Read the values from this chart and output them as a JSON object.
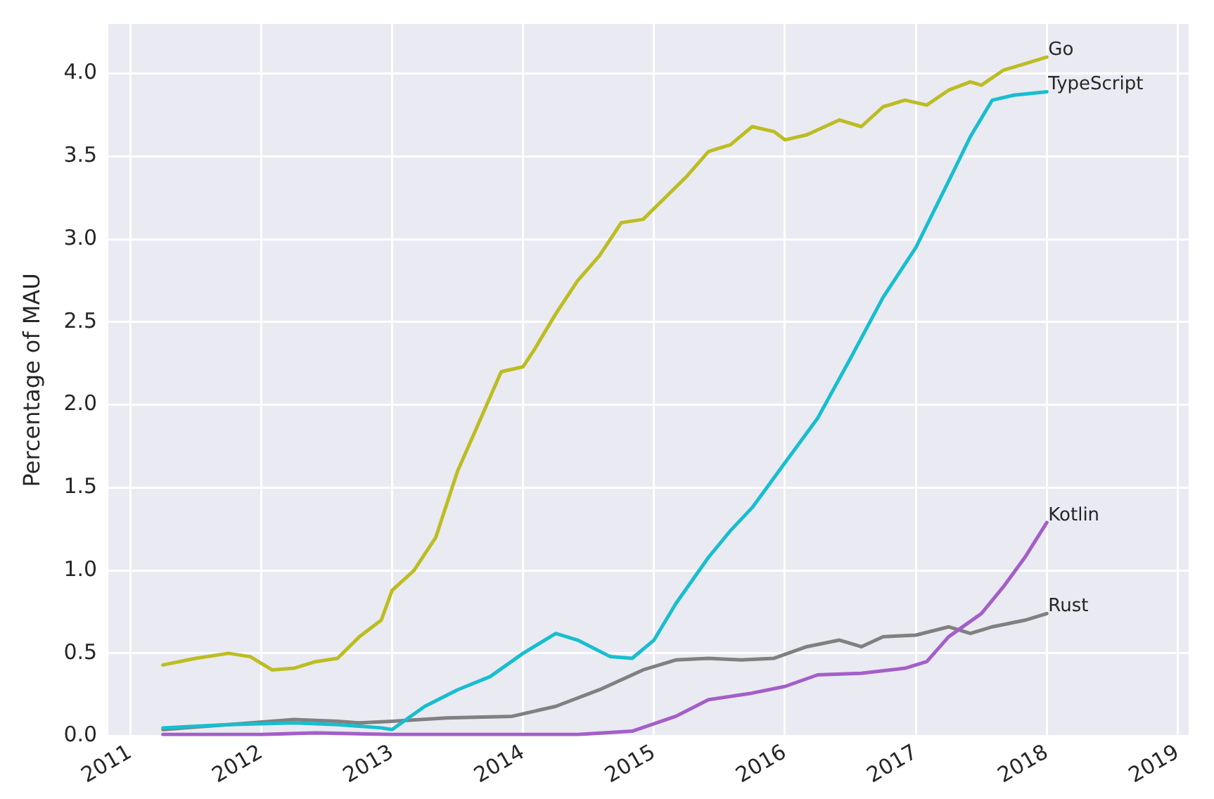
{
  "chart_data": {
    "type": "line",
    "ylabel": "Percentage of MAU",
    "xlim": [
      "2010-11",
      "2019-02"
    ],
    "xticks": [
      "2011",
      "2012",
      "2013",
      "2014",
      "2015",
      "2016",
      "2017",
      "2018",
      "2019"
    ],
    "ylim": [
      0,
      4.3
    ],
    "yticks": [
      {
        "value": 0,
        "label": "0.0"
      },
      0.5,
      {
        "value": 1,
        "label": "1.0"
      },
      1.5,
      {
        "value": 2,
        "label": "2.0"
      },
      2.5,
      {
        "value": 3,
        "label": "3.0"
      },
      3.5,
      {
        "value": 4,
        "label": "4.0"
      }
    ],
    "grid": true,
    "legend": false,
    "marker": "none",
    "line_style": "solid",
    "series": [
      {
        "name": "Go",
        "color": "#bcbd22",
        "x": [
          "2011-04",
          "2011-07",
          "2011-10",
          "2011-12",
          "2012-02",
          "2012-04",
          "2012-06",
          "2012-08",
          "2012-10",
          "2012-12",
          "2013-01",
          "2013-03",
          "2013-05",
          "2013-07",
          "2013-09",
          "2013-11",
          "2014-01",
          "2014-02",
          "2014-04",
          "2014-06",
          "2014-08",
          "2014-10",
          "2014-12",
          "2015-02",
          "2015-04",
          "2015-06",
          "2015-08",
          "2015-10",
          "2015-12",
          "2016-01",
          "2016-03",
          "2016-06",
          "2016-08",
          "2016-10",
          "2016-12",
          "2017-02",
          "2017-04",
          "2017-06",
          "2017-07",
          "2017-09",
          "2017-11",
          "2018-01"
        ],
        "values": [
          0.43,
          0.47,
          0.5,
          0.48,
          0.4,
          0.41,
          0.45,
          0.47,
          0.6,
          0.7,
          0.88,
          1.0,
          1.2,
          1.6,
          1.9,
          2.2,
          2.23,
          2.33,
          2.55,
          2.75,
          2.9,
          3.1,
          3.12,
          3.25,
          3.38,
          3.53,
          3.57,
          3.68,
          3.65,
          3.6,
          3.63,
          3.72,
          3.68,
          3.8,
          3.84,
          3.81,
          3.9,
          3.95,
          3.93,
          4.02,
          4.06,
          4.1
        ]
      },
      {
        "name": "TypeScript",
        "color": "#17becf",
        "x": [
          "2011-04",
          "2011-10",
          "2012-04",
          "2012-08",
          "2012-12",
          "2013-01",
          "2013-04",
          "2013-07",
          "2013-10",
          "2014-01",
          "2014-04",
          "2014-06",
          "2014-09",
          "2014-11",
          "2015-01",
          "2015-03",
          "2015-06",
          "2015-08",
          "2015-10",
          "2016-01",
          "2016-04",
          "2016-07",
          "2016-10",
          "2017-01",
          "2017-04",
          "2017-06",
          "2017-08",
          "2017-10",
          "2018-01"
        ],
        "values": [
          0.05,
          0.07,
          0.08,
          0.07,
          0.05,
          0.04,
          0.18,
          0.28,
          0.36,
          0.5,
          0.62,
          0.58,
          0.48,
          0.47,
          0.58,
          0.8,
          1.08,
          1.24,
          1.38,
          1.65,
          1.92,
          2.28,
          2.65,
          2.95,
          3.35,
          3.62,
          3.84,
          3.87,
          3.89
        ]
      },
      {
        "name": "Kotlin",
        "color": "#a35fc8",
        "x": [
          "2011-04",
          "2012-01",
          "2012-06",
          "2013-01",
          "2014-06",
          "2014-11",
          "2015-03",
          "2015-06",
          "2015-10",
          "2016-01",
          "2016-04",
          "2016-08",
          "2016-12",
          "2017-02",
          "2017-04",
          "2017-07",
          "2017-09",
          "2017-11",
          "2018-01"
        ],
        "values": [
          0.01,
          0.01,
          0.02,
          0.01,
          0.01,
          0.03,
          0.12,
          0.22,
          0.26,
          0.3,
          0.37,
          0.38,
          0.41,
          0.45,
          0.6,
          0.74,
          0.9,
          1.08,
          1.29
        ]
      },
      {
        "name": "Rust",
        "color": "#808080",
        "x": [
          "2011-04",
          "2011-10",
          "2012-04",
          "2012-08",
          "2012-10",
          "2013-01",
          "2013-06",
          "2013-12",
          "2014-04",
          "2014-08",
          "2014-12",
          "2015-03",
          "2015-06",
          "2015-09",
          "2015-12",
          "2016-03",
          "2016-06",
          "2016-08",
          "2016-10",
          "2017-01",
          "2017-04",
          "2017-06",
          "2017-08",
          "2017-11",
          "2018-01"
        ],
        "values": [
          0.04,
          0.07,
          0.1,
          0.09,
          0.08,
          0.09,
          0.11,
          0.12,
          0.18,
          0.28,
          0.4,
          0.46,
          0.47,
          0.46,
          0.47,
          0.54,
          0.58,
          0.54,
          0.6,
          0.61,
          0.66,
          0.62,
          0.66,
          0.7,
          0.74
        ]
      }
    ]
  }
}
